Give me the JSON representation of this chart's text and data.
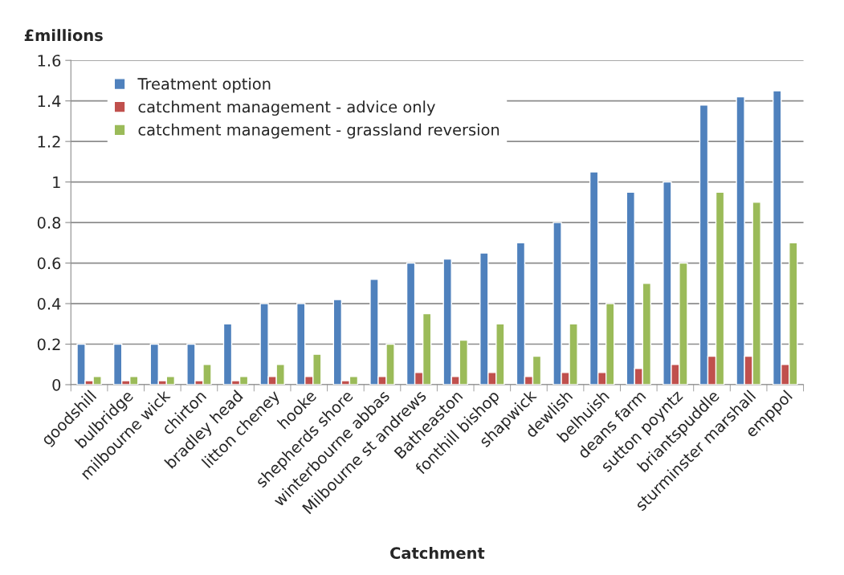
{
  "chart_data": {
    "type": "bar",
    "ylabel": "£millions",
    "xlabel": "Catchment",
    "categories": [
      "goodshill",
      "bulbridge",
      "milbourne wick",
      "chirton",
      "bradley head",
      "litton cheney",
      "hooke",
      "shepherds shore",
      "winterbourne abbas",
      "Milbourne st andrews",
      "Batheaston",
      "fonthill bishop",
      "shapwick",
      "dewlish",
      "belhuish",
      "deans farm",
      "sutton poyntz",
      "briantspuddle",
      "sturminster marshall",
      "emppol"
    ],
    "series": [
      {
        "name": "Treatment option",
        "color": "#4f81bd",
        "values": [
          0.2,
          0.2,
          0.2,
          0.2,
          0.3,
          0.4,
          0.4,
          0.42,
          0.52,
          0.6,
          0.62,
          0.65,
          0.7,
          0.8,
          1.05,
          0.95,
          1.0,
          1.38,
          1.42,
          1.45
        ]
      },
      {
        "name": "catchment management - advice only",
        "color": "#c0504d",
        "values": [
          0.02,
          0.02,
          0.02,
          0.02,
          0.02,
          0.04,
          0.04,
          0.02,
          0.04,
          0.06,
          0.04,
          0.06,
          0.04,
          0.06,
          0.06,
          0.08,
          0.1,
          0.14,
          0.14,
          0.1
        ]
      },
      {
        "name": "catchment management - grassland reversion",
        "color": "#9bbb59",
        "values": [
          0.04,
          0.04,
          0.04,
          0.1,
          0.04,
          0.1,
          0.15,
          0.04,
          0.2,
          0.35,
          0.22,
          0.3,
          0.14,
          0.3,
          0.4,
          0.5,
          0.6,
          0.95,
          0.9,
          0.7
        ]
      }
    ],
    "ylim": [
      0,
      1.6
    ],
    "yticks": [
      0,
      0.2,
      0.4,
      0.6,
      0.8,
      1,
      1.2,
      1.4,
      1.6
    ],
    "grid": "y",
    "legend": "top left"
  }
}
